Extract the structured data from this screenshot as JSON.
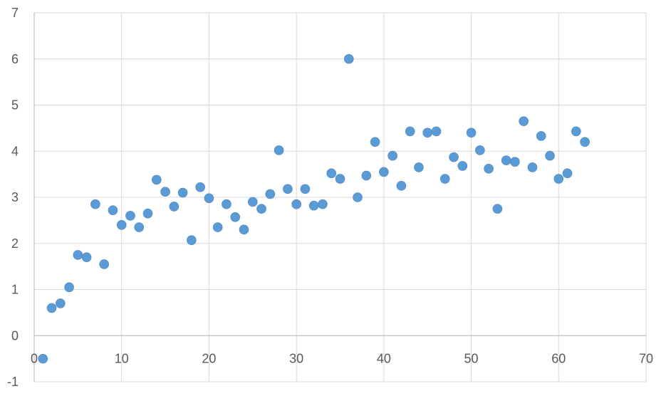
{
  "chart_data": {
    "type": "scatter",
    "title": "",
    "xlabel": "",
    "ylabel": "",
    "xlim": [
      0,
      70
    ],
    "ylim": [
      -1,
      7
    ],
    "xticks": [
      0,
      10,
      20,
      30,
      40,
      50,
      60,
      70
    ],
    "yticks": [
      -1,
      0,
      1,
      2,
      3,
      4,
      5,
      6,
      7
    ],
    "xtick_labels": [
      "0",
      "10",
      "20",
      "30",
      "40",
      "50",
      "60",
      "70"
    ],
    "ytick_labels": [
      "-1",
      "0",
      "1",
      "2",
      "3",
      "4",
      "5",
      "6",
      "7"
    ],
    "grid": true,
    "legend": "none",
    "colors": {
      "marker": "#5b9bd5",
      "grid": "#d9d9d9",
      "axis": "#bfbfbf",
      "tick_text": "#595959"
    },
    "series": [
      {
        "x": [
          1,
          2,
          3,
          4,
          5,
          6,
          7,
          8,
          9,
          10,
          11,
          12,
          13,
          14,
          15,
          16,
          17,
          18,
          19,
          20,
          21,
          22,
          23,
          24,
          25,
          26,
          27,
          28,
          29,
          30,
          31,
          32,
          33,
          34,
          35,
          36,
          37,
          38,
          39,
          40,
          41,
          42,
          43,
          44,
          45,
          46,
          47,
          48,
          49,
          50,
          51,
          52,
          53,
          54,
          55,
          56,
          57,
          58,
          59,
          60,
          61,
          62,
          63
        ],
        "y": [
          -0.5,
          0.6,
          0.7,
          1.05,
          1.75,
          1.7,
          2.85,
          1.55,
          2.72,
          2.4,
          2.6,
          2.35,
          2.65,
          3.38,
          3.12,
          2.8,
          3.1,
          2.07,
          3.22,
          2.98,
          2.35,
          2.85,
          2.57,
          2.3,
          2.9,
          2.75,
          3.07,
          4.02,
          3.18,
          2.85,
          3.18,
          2.82,
          2.85,
          3.52,
          3.4,
          6.0,
          3.0,
          3.47,
          4.2,
          3.55,
          3.9,
          3.25,
          4.43,
          3.65,
          4.4,
          4.43,
          3.4,
          3.87,
          3.68,
          4.4,
          4.02,
          3.62,
          2.75,
          3.8,
          3.77,
          4.65,
          3.65,
          4.33,
          3.9,
          3.4,
          3.52,
          4.43,
          4.2
        ]
      }
    ]
  }
}
